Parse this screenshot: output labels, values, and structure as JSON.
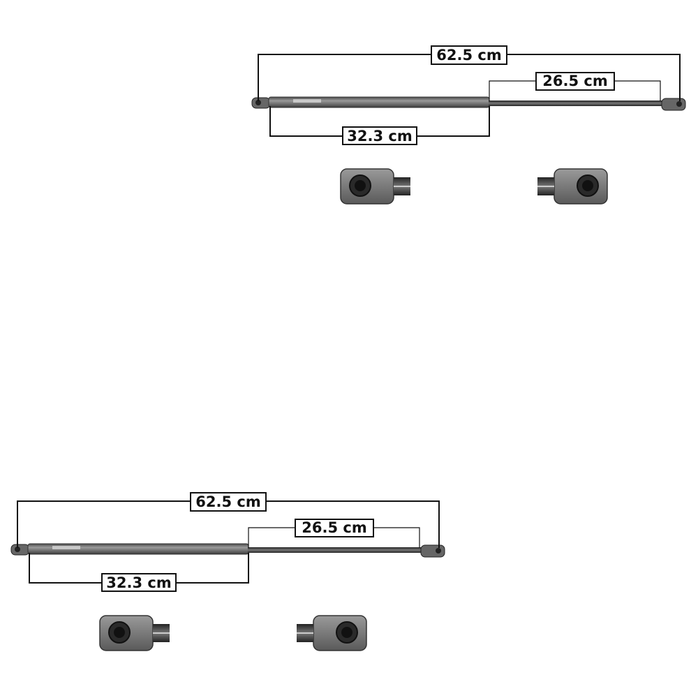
{
  "assemblies": [
    {
      "overall_length": "62.5 cm",
      "rod_length": "26.5 cm",
      "body_length": "32.3 cm"
    },
    {
      "overall_length": "62.5 cm",
      "rod_length": "26.5 cm",
      "body_length": "32.3 cm"
    }
  ],
  "colors": {
    "line": "#111111",
    "strut_body": "#6e6e6e",
    "rod": "#3a3a3a",
    "fitting": "#7a7a7a"
  }
}
